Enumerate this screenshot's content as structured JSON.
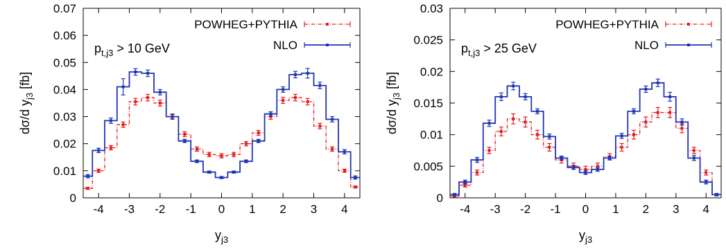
{
  "chart_data": [
    {
      "type": "line",
      "step": true,
      "ylabel": "dσ/d y",
      "ylabel_sub": "j3",
      "ylabel_unit": " [fb]",
      "xlabel": "y",
      "xlabel_sub": "j3",
      "annotation": {
        "pre": "p",
        "sub": "t,j3",
        "post": " > 10 GeV"
      },
      "xlim": [
        -4.5,
        4.5
      ],
      "ylim": [
        0,
        0.07
      ],
      "xticks": [
        -4,
        -3,
        -2,
        -1,
        0,
        1,
        2,
        3,
        4
      ],
      "xtick_labels": [
        "-4",
        "-3",
        "-2",
        "-1",
        "0",
        "1",
        "2",
        "3",
        "4"
      ],
      "yticks": [
        0,
        0.01,
        0.02,
        0.03,
        0.04,
        0.05,
        0.06,
        0.07
      ],
      "ytick_labels": [
        "0",
        "0.01",
        "0.02",
        "0.03",
        "0.04",
        "0.05",
        "0.06",
        "0.07"
      ],
      "legend_position": "top-right",
      "bin_edges": [
        -4.5,
        -4.2,
        -3.8,
        -3.4,
        -3.0,
        -2.6,
        -2.2,
        -1.8,
        -1.4,
        -1.0,
        -0.6,
        -0.2,
        0.2,
        0.6,
        1.0,
        1.4,
        1.8,
        2.2,
        2.6,
        3.0,
        3.4,
        3.8,
        4.2,
        4.5
      ],
      "x": [
        -4.35,
        -4.0,
        -3.6,
        -3.2,
        -2.8,
        -2.4,
        -2.0,
        -1.6,
        -1.2,
        -0.8,
        -0.4,
        0.0,
        0.4,
        0.8,
        1.2,
        1.6,
        2.0,
        2.4,
        2.8,
        3.2,
        3.6,
        4.0,
        4.35
      ],
      "series": [
        {
          "name": "POWHEG+PYTHIA",
          "color": "#e41a1c",
          "dashed": true,
          "values": [
            0.0035,
            0.01,
            0.0185,
            0.027,
            0.0355,
            0.037,
            0.035,
            0.03,
            0.0235,
            0.018,
            0.016,
            0.0155,
            0.016,
            0.02,
            0.024,
            0.03,
            0.036,
            0.037,
            0.0355,
            0.0265,
            0.018,
            0.01,
            0.004
          ],
          "errors": [
            0.0004,
            0.0006,
            0.0008,
            0.001,
            0.0012,
            0.0012,
            0.0011,
            0.001,
            0.0009,
            0.0008,
            0.0008,
            0.0008,
            0.0008,
            0.0008,
            0.0009,
            0.001,
            0.0011,
            0.0012,
            0.0012,
            0.001,
            0.0008,
            0.0006,
            0.0004
          ]
        },
        {
          "name": "NLO",
          "color": "#1f33b4",
          "dashed": false,
          "values": [
            0.008,
            0.0175,
            0.0285,
            0.041,
            0.0465,
            0.046,
            0.039,
            0.03,
            0.021,
            0.0135,
            0.0095,
            0.0075,
            0.0095,
            0.0135,
            0.021,
            0.031,
            0.04,
            0.0455,
            0.046,
            0.0415,
            0.029,
            0.017,
            0.0075
          ],
          "errors": [
            0.0006,
            0.0008,
            0.001,
            0.003,
            0.0012,
            0.0012,
            0.001,
            0.0008,
            0.0006,
            0.0005,
            0.0004,
            0.0004,
            0.0004,
            0.0005,
            0.0006,
            0.0008,
            0.001,
            0.0012,
            0.0018,
            0.0012,
            0.001,
            0.0008,
            0.0006
          ]
        }
      ]
    },
    {
      "type": "line",
      "step": true,
      "ylabel": "dσ/d y",
      "ylabel_sub": "j3",
      "ylabel_unit": " [fb]",
      "xlabel": "y",
      "xlabel_sub": "j3",
      "annotation": {
        "pre": "p",
        "sub": "t,j3",
        "post": " > 25 GeV"
      },
      "xlim": [
        -4.5,
        4.5
      ],
      "ylim": [
        0,
        0.03
      ],
      "xticks": [
        -4,
        -3,
        -2,
        -1,
        0,
        1,
        2,
        3,
        4
      ],
      "xtick_labels": [
        "-4",
        "-3",
        "-2",
        "-1",
        "0",
        "1",
        "2",
        "3",
        "4"
      ],
      "yticks": [
        0,
        0.005,
        0.01,
        0.015,
        0.02,
        0.025,
        0.03
      ],
      "ytick_labels": [
        "0",
        "0.005",
        "0.01",
        "0.015",
        "0.02",
        "0.025",
        "0.03"
      ],
      "legend_position": "top-right",
      "bin_edges": [
        -4.5,
        -4.2,
        -3.8,
        -3.4,
        -3.0,
        -2.6,
        -2.2,
        -1.8,
        -1.4,
        -1.0,
        -0.6,
        -0.2,
        0.2,
        0.6,
        1.0,
        1.4,
        1.8,
        2.2,
        2.6,
        3.0,
        3.4,
        3.8,
        4.2,
        4.5
      ],
      "x": [
        -4.35,
        -4.0,
        -3.6,
        -3.2,
        -2.8,
        -2.4,
        -2.0,
        -1.6,
        -1.2,
        -0.8,
        -0.4,
        0.0,
        0.4,
        0.8,
        1.2,
        1.6,
        2.0,
        2.4,
        2.8,
        3.2,
        3.6,
        4.0,
        4.35
      ],
      "series": [
        {
          "name": "POWHEG+PYTHIA",
          "color": "#e41a1c",
          "dashed": true,
          "values": [
            0.0003,
            0.002,
            0.004,
            0.0075,
            0.0105,
            0.0125,
            0.012,
            0.01,
            0.008,
            0.006,
            0.005,
            0.0045,
            0.005,
            0.0065,
            0.008,
            0.01,
            0.012,
            0.0135,
            0.0135,
            0.011,
            0.0075,
            0.004,
            0.0005
          ],
          "errors": [
            0.0002,
            0.0003,
            0.0004,
            0.0005,
            0.0007,
            0.0008,
            0.0008,
            0.0007,
            0.0006,
            0.0005,
            0.0005,
            0.0005,
            0.0005,
            0.0005,
            0.0006,
            0.0007,
            0.0008,
            0.0008,
            0.0008,
            0.0007,
            0.0005,
            0.0004,
            0.0002
          ]
        },
        {
          "name": "NLO",
          "color": "#1f33b4",
          "dashed": false,
          "values": [
            0.0005,
            0.0025,
            0.006,
            0.0118,
            0.016,
            0.0177,
            0.016,
            0.0137,
            0.0097,
            0.0063,
            0.0048,
            0.004,
            0.0045,
            0.0063,
            0.0098,
            0.0137,
            0.0172,
            0.0182,
            0.016,
            0.012,
            0.0063,
            0.0025,
            0.0005
          ],
          "errors": [
            0.0002,
            0.0003,
            0.0004,
            0.0005,
            0.0006,
            0.0006,
            0.0005,
            0.0004,
            0.0004,
            0.0003,
            0.0003,
            0.0003,
            0.0003,
            0.0003,
            0.0004,
            0.0004,
            0.0005,
            0.0006,
            0.0007,
            0.0005,
            0.0004,
            0.0003,
            0.0002
          ]
        }
      ]
    }
  ]
}
